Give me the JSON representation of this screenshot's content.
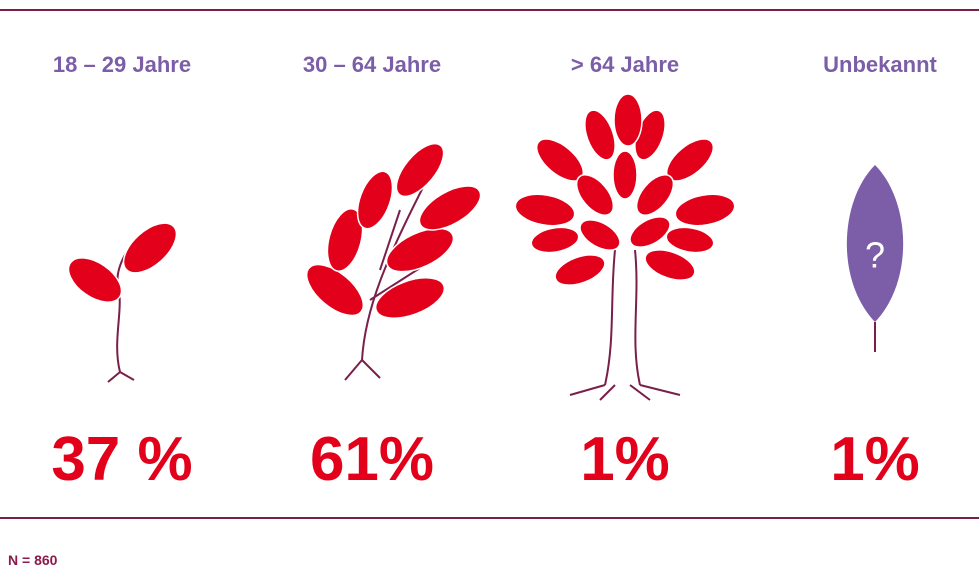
{
  "groups": [
    {
      "label": "18 – 29 Jahre",
      "share": "37 %"
    },
    {
      "label": "30 – 64 Jahre",
      "share": "61%"
    },
    {
      "label": "> 64 Jahre",
      "share": "1%"
    },
    {
      "label": "Unbekannt",
      "share": "1%"
    }
  ],
  "question_mark": "?",
  "note": "N = 860"
}
